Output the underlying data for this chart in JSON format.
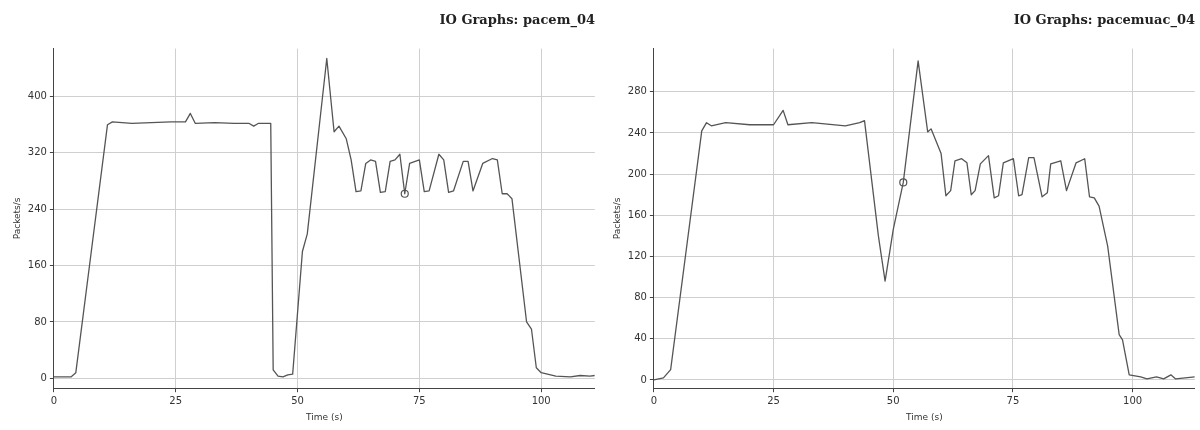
{
  "chart_data": [
    {
      "type": "line",
      "title": "IO Graphs: pacem_04",
      "xlabel": "Time (s)",
      "ylabel": "Packets/s",
      "xlim": [
        0,
        111
      ],
      "ylim": [
        -14,
        468
      ],
      "xticks": [
        0,
        25,
        50,
        75,
        100
      ],
      "yticks": [
        0,
        80,
        160,
        240,
        320,
        400
      ],
      "grid": true,
      "legend": false,
      "marker": "none",
      "line_style": "solid",
      "series": [
        {
          "color": "#555555",
          "x": [
            0,
            3.5,
            4.5,
            11,
            12,
            16,
            20,
            24,
            27,
            28,
            29,
            33,
            37,
            40,
            41,
            42,
            44,
            44.5,
            45,
            46,
            47,
            48,
            49,
            51,
            52,
            56,
            57.5,
            58.5,
            60,
            61,
            62,
            63,
            64,
            65,
            66,
            67,
            68,
            69,
            70,
            71,
            72,
            73,
            75,
            76,
            77,
            79,
            80,
            81,
            82,
            84,
            85,
            86,
            88,
            90,
            91,
            92,
            93,
            94,
            97,
            98,
            99,
            100,
            103,
            106,
            108,
            110,
            111
          ],
          "values": [
            2,
            2,
            8,
            360,
            364,
            362,
            363,
            364,
            364,
            376,
            362,
            363,
            362,
            362,
            358,
            362,
            362,
            362,
            12,
            3,
            2,
            5,
            6,
            180,
            205,
            454,
            350,
            358,
            340,
            310,
            265,
            266,
            305,
            310,
            308,
            264,
            265,
            308,
            310,
            318,
            262,
            305,
            310,
            265,
            266,
            318,
            310,
            264,
            266,
            308,
            308,
            266,
            305,
            312,
            310,
            262,
            262,
            255,
            80,
            70,
            15,
            8,
            3,
            2,
            4,
            3,
            4
          ]
        },
        {
          "type": "scatter",
          "marker": "circle",
          "color": "#555555",
          "x": [
            72
          ],
          "values": [
            262
          ]
        }
      ]
    },
    {
      "type": "line",
      "title": "IO Graphs: pacemuac_04",
      "xlabel": "Time (s)",
      "ylabel": "Packets/s",
      "xlim": [
        0,
        113
      ],
      "ylim": [
        -8,
        322
      ],
      "xticks": [
        0,
        25,
        50,
        75,
        100
      ],
      "yticks": [
        0,
        40,
        80,
        120,
        160,
        200,
        240,
        280
      ],
      "grid": true,
      "legend": false,
      "marker": "none",
      "line_style": "solid",
      "series": [
        {
          "color": "#555555",
          "x": [
            0,
            2,
            3.5,
            10,
            11,
            12,
            15,
            20,
            25,
            27,
            28,
            33,
            40,
            43,
            44,
            46.9,
            48.3,
            50,
            52.1,
            55.2,
            57.2,
            57.9,
            60,
            61,
            62,
            62.9,
            64.3,
            65.4,
            66.3,
            67.1,
            68.2,
            69.9,
            71.1,
            72,
            73,
            75.1,
            76.2,
            76.9,
            78.3,
            79.4,
            81.1,
            82.2,
            82.9,
            85,
            86.2,
            88.2,
            90,
            91,
            92,
            93,
            94.8,
            97.2,
            97.9,
            99.3,
            101.7,
            103,
            105,
            106.5,
            108,
            109,
            113
          ],
          "values": [
            0,
            2,
            10,
            242,
            250,
            247,
            250,
            248,
            248,
            262,
            248,
            250,
            247,
            250,
            252,
            140,
            96,
            146,
            192,
            310,
            241,
            244,
            220,
            179,
            184,
            213,
            215,
            211,
            180,
            184,
            210,
            218,
            177,
            179,
            211,
            215,
            179,
            180,
            216,
            216,
            178,
            182,
            210,
            213,
            184,
            211,
            215,
            178,
            177,
            169,
            130,
            44,
            39,
            5,
            3,
            1,
            3,
            1,
            5,
            1,
            3
          ]
        },
        {
          "type": "scatter",
          "marker": "circle",
          "color": "#555555",
          "x": [
            52.1
          ],
          "values": [
            192
          ]
        }
      ]
    }
  ]
}
